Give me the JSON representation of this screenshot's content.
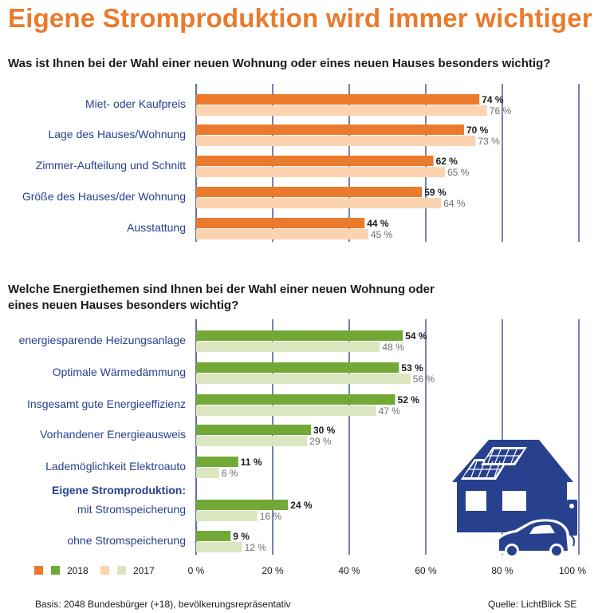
{
  "title": "Eigene Stromproduktion wird immer wichtiger",
  "question1": "Was ist Ihnen bei der Wahl einer neuen Wohnung oder eines neuen Hauses besonders wichtig?",
  "question2_line1": "Welche Energiethemen sind Ihnen bei der Wahl einer neuen Wohnung oder",
  "question2_line2": "eines neuen Hauses besonders wichtig?",
  "footer": {
    "basis": "Basis: 2048 Bundesbürger (+18), bevölkerungsrepräsentativ",
    "source": "Quelle: LichtBlick SE"
  },
  "legend": {
    "y2018": "2018",
    "y2017": "2017"
  },
  "colors": {
    "title": "#ea7a2c",
    "orange_2018": "#ea7a2c",
    "orange_2017": "#fbd3b0",
    "green_2018": "#72a836",
    "green_2017": "#dbe6c0",
    "label": "#27418f",
    "gridline": "#27418f",
    "house": "#27418f"
  },
  "chart_data": [
    {
      "type": "bar",
      "orientation": "horizontal",
      "title": "Was ist Ihnen bei der Wahl einer neuen Wohnung oder eines neuen Hauses besonders wichtig?",
      "categories": [
        "Miet- oder Kaufpreis",
        "Lage des Hauses/Wohnung",
        "Zimmer-Aufteilung und Schnitt",
        "Größe des Hauses/der Wohnung",
        "Ausstattung"
      ],
      "series": [
        {
          "name": "2018",
          "values": [
            74,
            70,
            62,
            59,
            44
          ]
        },
        {
          "name": "2017",
          "values": [
            76,
            73,
            65,
            64,
            45
          ]
        }
      ],
      "unit": "%",
      "xlim": [
        0,
        100
      ]
    },
    {
      "type": "bar",
      "orientation": "horizontal",
      "title": "Welche Energiethemen sind Ihnen bei der Wahl einer neuen Wohnung oder eines neuen Hauses besonders wichtig?",
      "categories": [
        "energiesparende Heizungsanlage",
        "Optimale Wärmedämmung",
        "Insgesamt gute Energieeffizienz",
        "Vorhandener Energieausweis",
        "Lademöglichkeit Elektroauto",
        "mit Stromspeicherung",
        "ohne Stromspeicherung"
      ],
      "group_heading": "Eigene Stromproduktion:",
      "series": [
        {
          "name": "2018",
          "values": [
            54,
            53,
            52,
            30,
            11,
            24,
            9
          ]
        },
        {
          "name": "2017",
          "values": [
            48,
            56,
            47,
            29,
            6,
            16,
            12
          ]
        }
      ],
      "unit": "%",
      "xlim": [
        0,
        100
      ],
      "xticks": [
        0,
        20,
        40,
        60,
        80,
        100
      ],
      "xtick_labels": [
        "0 %",
        "20 %",
        "40 %",
        "60 %",
        "80 %",
        "100 %"
      ]
    }
  ]
}
